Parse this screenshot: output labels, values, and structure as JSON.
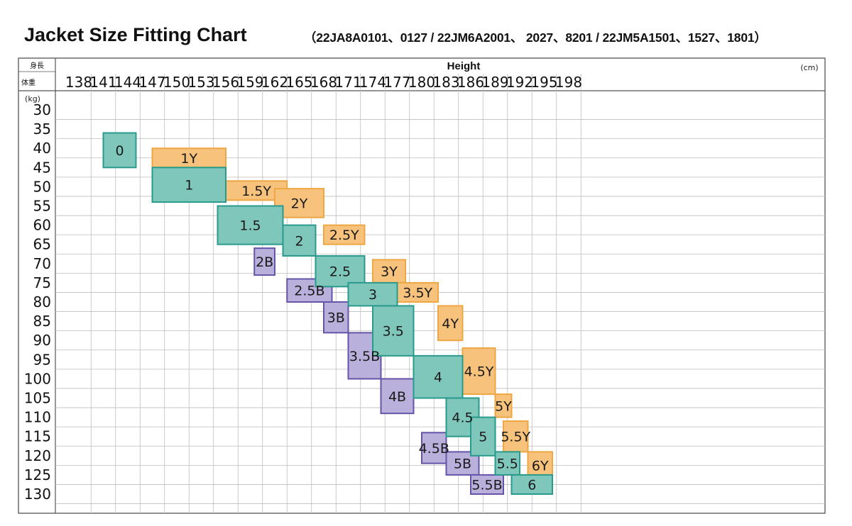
{
  "chart_data": {
    "type": "heatmap",
    "title": "Jacket Size Fitting Chart",
    "subtitle": "（22JA8A0101、0127 / 22JM6A2001、 2027、8201 / 22JM5A1501、1527、1801）",
    "corner_top": "身長",
    "corner_bottom": "体重",
    "xlabel": "Height",
    "x_unit": "(cm)",
    "y_unit": "(kg)",
    "x_ticks": [
      138,
      141,
      144,
      147,
      150,
      153,
      156,
      159,
      162,
      165,
      168,
      171,
      174,
      177,
      180,
      183,
      186,
      189,
      192,
      195,
      198
    ],
    "y_ticks": [
      30,
      35,
      40,
      45,
      50,
      55,
      60,
      65,
      70,
      75,
      80,
      85,
      90,
      95,
      100,
      105,
      110,
      115,
      120,
      125,
      130
    ],
    "grid": true,
    "colors": {
      "regular": "#7fc6bb",
      "regular_stroke": "#2a9a8c",
      "Y": "#f6c27c",
      "Y_stroke": "#eea743",
      "B": "#b9b0dc",
      "B_stroke": "#6654a8"
    },
    "sizes": [
      {
        "label": "1Y",
        "type": "Y",
        "height_range": [
          147,
          156
        ],
        "weight_range": [
          40,
          45
        ]
      },
      {
        "label": "1.5Y",
        "type": "Y",
        "height_range": [
          156,
          163.5
        ],
        "weight_range": [
          48.5,
          53.5
        ]
      },
      {
        "label": "2Y",
        "type": "Y",
        "height_range": [
          162,
          168
        ],
        "weight_range": [
          50.5,
          58
        ]
      },
      {
        "label": "2.5Y",
        "type": "Y",
        "height_range": [
          168,
          173
        ],
        "weight_range": [
          60,
          65
        ]
      },
      {
        "label": "3Y",
        "type": "Y",
        "height_range": [
          174,
          178
        ],
        "weight_range": [
          69,
          75
        ]
      },
      {
        "label": "3.5Y",
        "type": "Y",
        "height_range": [
          177,
          182
        ],
        "weight_range": [
          75,
          80
        ]
      },
      {
        "label": "4Y",
        "type": "Y",
        "height_range": [
          182,
          185
        ],
        "weight_range": [
          81,
          90
        ]
      },
      {
        "label": "4.5Y",
        "type": "Y",
        "height_range": [
          185,
          189
        ],
        "weight_range": [
          92,
          104
        ]
      },
      {
        "label": "5Y",
        "type": "Y",
        "height_range": [
          189,
          191
        ],
        "weight_range": [
          104,
          110
        ]
      },
      {
        "label": "5.5Y",
        "type": "Y",
        "height_range": [
          190,
          193
        ],
        "weight_range": [
          111,
          119
        ]
      },
      {
        "label": "6Y",
        "type": "Y",
        "height_range": [
          193,
          196
        ],
        "weight_range": [
          119,
          126
        ]
      },
      {
        "label": "2B",
        "type": "B",
        "height_range": [
          159.5,
          162
        ],
        "weight_range": [
          66,
          73
        ]
      },
      {
        "label": "2.5B",
        "type": "B",
        "height_range": [
          163.5,
          169
        ],
        "weight_range": [
          74,
          80
        ]
      },
      {
        "label": "3B",
        "type": "B",
        "height_range": [
          168,
          171
        ],
        "weight_range": [
          80,
          88
        ]
      },
      {
        "label": "3.5B",
        "type": "B",
        "height_range": [
          171,
          175
        ],
        "weight_range": [
          88,
          100
        ]
      },
      {
        "label": "4B",
        "type": "B",
        "height_range": [
          175,
          179
        ],
        "weight_range": [
          100,
          109
        ]
      },
      {
        "label": "4.5B",
        "type": "B",
        "height_range": [
          180,
          183
        ],
        "weight_range": [
          114,
          122
        ]
      },
      {
        "label": "5B",
        "type": "B",
        "height_range": [
          183,
          187
        ],
        "weight_range": [
          119,
          125
        ]
      },
      {
        "label": "5.5B",
        "type": "B",
        "height_range": [
          186,
          190
        ],
        "weight_range": [
          125,
          130
        ]
      },
      {
        "label": "0",
        "type": "regular",
        "height_range": [
          141,
          145
        ],
        "weight_range": [
          36,
          45
        ]
      },
      {
        "label": "1",
        "type": "regular",
        "height_range": [
          147,
          156
        ],
        "weight_range": [
          45,
          54
        ]
      },
      {
        "label": "1.5",
        "type": "regular",
        "height_range": [
          155,
          163
        ],
        "weight_range": [
          55,
          65
        ]
      },
      {
        "label": "2",
        "type": "regular",
        "height_range": [
          163,
          167
        ],
        "weight_range": [
          60,
          68
        ]
      },
      {
        "label": "2.5",
        "type": "regular",
        "height_range": [
          167,
          173
        ],
        "weight_range": [
          68,
          76
        ]
      },
      {
        "label": "3",
        "type": "regular",
        "height_range": [
          171,
          177
        ],
        "weight_range": [
          75,
          81
        ]
      },
      {
        "label": "3.5",
        "type": "regular",
        "height_range": [
          174,
          179
        ],
        "weight_range": [
          81,
          94
        ]
      },
      {
        "label": "4",
        "type": "regular",
        "height_range": [
          179,
          185
        ],
        "weight_range": [
          94,
          105
        ]
      },
      {
        "label": "4.5",
        "type": "regular",
        "height_range": [
          183,
          187
        ],
        "weight_range": [
          105,
          115
        ]
      },
      {
        "label": "5",
        "type": "regular",
        "height_range": [
          186,
          189
        ],
        "weight_range": [
          110,
          120
        ]
      },
      {
        "label": "5.5",
        "type": "regular",
        "height_range": [
          189,
          192
        ],
        "weight_range": [
          119,
          125
        ]
      },
      {
        "label": "6",
        "type": "regular",
        "height_range": [
          191,
          196
        ],
        "weight_range": [
          125,
          130
        ]
      }
    ]
  }
}
